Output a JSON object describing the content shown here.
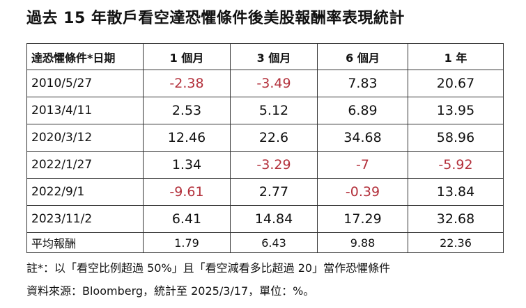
{
  "title": "過去 15 年散戶看空達恐懼條件後美股報酬率表現統計",
  "table": {
    "header": [
      "達恐懼條件*日期",
      "1 個月",
      "3 個月",
      "6 個月",
      "1 年"
    ],
    "rows": [
      [
        "2010/5/27",
        -2.38,
        -3.49,
        7.83,
        20.67
      ],
      [
        "2013/4/11",
        2.53,
        5.12,
        6.89,
        13.95
      ],
      [
        "2020/3/12",
        12.46,
        22.6,
        34.68,
        58.96
      ],
      [
        "2022/1/27",
        1.34,
        -3.29,
        -7,
        -5.92
      ],
      [
        "2022/9/1",
        -9.61,
        2.77,
        -0.39,
        13.84
      ],
      [
        "2023/11/2",
        6.41,
        14.84,
        17.29,
        32.68
      ]
    ],
    "average": [
      "平均報酬",
      1.79,
      6.43,
      9.88,
      22.36
    ]
  },
  "notes": [
    "註*：以「看空比例超過 50%」且「看空減看多比超過 20」當作恐懼條件",
    "資料來源：Bloomberg，統計至 2025/3/17，單位：%。"
  ]
}
